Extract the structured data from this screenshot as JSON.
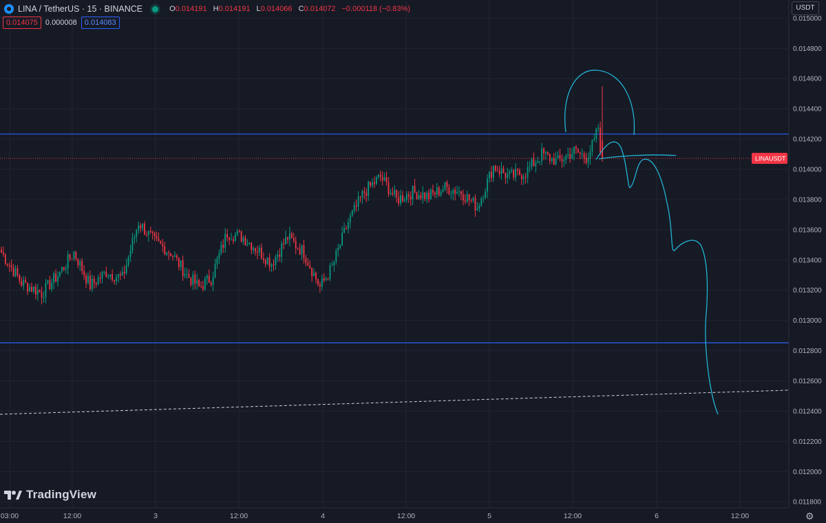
{
  "header": {
    "symbol": "LINA / TetherUS · 15 · BINANCE",
    "open_label": "O",
    "open": "0.014191",
    "high_label": "H",
    "high": "0.014191",
    "low_label": "L",
    "low": "0.014066",
    "close_label": "C",
    "close": "0.014072",
    "change": "−0.000118 (−0.83%)"
  },
  "quote": {
    "bid": "0.014075",
    "spread": "0.000008",
    "ask": "0.014083"
  },
  "currency_button": "USDT",
  "watermark": "TradingView",
  "colors": {
    "background": "#161a25",
    "up": "#089981",
    "down": "#f23645",
    "level_line": "#2962ff",
    "drawing": "#22b4d6",
    "last_price": "#f23645"
  },
  "chart_data": {
    "type": "candlestick",
    "y_axis": {
      "range": [
        0.01176,
        0.01512
      ],
      "ticks": [
        "0.015000",
        "0.014800",
        "0.014600",
        "0.014400",
        "0.014200",
        "0.014000",
        "0.013800",
        "0.013600",
        "0.013400",
        "0.013200",
        "0.013000",
        "0.012800",
        "0.012600",
        "0.012400",
        "0.012200",
        "0.012000",
        "0.011800"
      ]
    },
    "x_axis": {
      "labels": [
        "03:00",
        "12:00",
        "3",
        "12:00",
        "4",
        "12:00",
        "5",
        "12:00",
        "6",
        "12:00"
      ]
    },
    "grid": true,
    "price_levels": [
      {
        "label": "0.014233",
        "value": 0.014233
      },
      {
        "label": "0.012852",
        "value": 0.012852
      }
    ],
    "last_price": {
      "symbol": "LINAUSDT",
      "label": "0.014072",
      "value": 0.014072
    },
    "close_anchors": [
      [
        0,
        0.01345
      ],
      [
        10,
        0.01325
      ],
      [
        20,
        0.01318
      ],
      [
        28,
        0.0133
      ],
      [
        36,
        0.01345
      ],
      [
        44,
        0.01323
      ],
      [
        52,
        0.01332
      ],
      [
        60,
        0.01328
      ],
      [
        68,
        0.01365
      ],
      [
        76,
        0.01352
      ],
      [
        84,
        0.01345
      ],
      [
        92,
        0.0133
      ],
      [
        98,
        0.01322
      ],
      [
        104,
        0.01328
      ],
      [
        112,
        0.01358
      ],
      [
        120,
        0.01355
      ],
      [
        126,
        0.01348
      ],
      [
        134,
        0.01338
      ],
      [
        142,
        0.01355
      ],
      [
        150,
        0.01345
      ],
      [
        158,
        0.01322
      ],
      [
        164,
        0.01335
      ],
      [
        172,
        0.01365
      ],
      [
        180,
        0.01385
      ],
      [
        188,
        0.01395
      ],
      [
        196,
        0.0138
      ],
      [
        204,
        0.01385
      ],
      [
        212,
        0.01382
      ],
      [
        220,
        0.01388
      ],
      [
        228,
        0.01385
      ],
      [
        236,
        0.01375
      ],
      [
        244,
        0.01402
      ],
      [
        252,
        0.01395
      ],
      [
        260,
        0.01398
      ],
      [
        268,
        0.0141
      ],
      [
        276,
        0.01405
      ],
      [
        284,
        0.01412
      ],
      [
        290,
        0.01408
      ],
      [
        294,
        0.01418
      ],
      [
        296,
        0.01428
      ],
      [
        297,
        0.01408
      ]
    ],
    "spike": {
      "high": 0.01455,
      "open": 0.01419,
      "close": 0.01407
    },
    "highlights": [
      {
        "value": 0.01423
      },
      {
        "value": 0.01317
      },
      {
        "value": 0.01378
      }
    ]
  }
}
